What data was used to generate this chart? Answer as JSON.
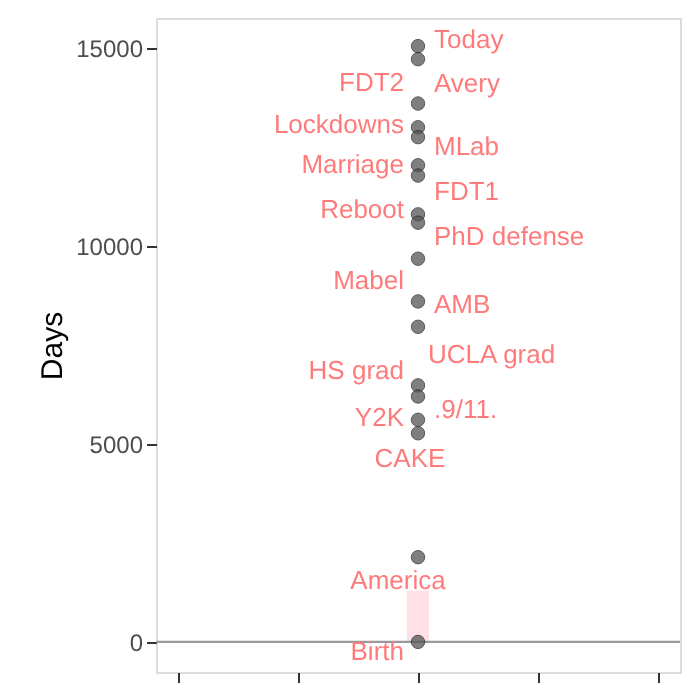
{
  "chart_data": {
    "type": "scatter",
    "ylabel": "Days",
    "categories": [
      null,
      null,
      null,
      null,
      null
    ],
    "series": [
      {
        "color": "#555555",
        "values": [
          null,
          null,
          15050,
          null,
          null
        ]
      },
      {
        "color": "#555555",
        "values": [
          null,
          null,
          14720,
          null,
          null
        ]
      },
      {
        "color": "#555555",
        "values": [
          null,
          null,
          13600,
          null,
          null
        ]
      },
      {
        "color": "#555555",
        "values": [
          null,
          null,
          13000,
          null,
          null
        ]
      },
      {
        "color": "#555555",
        "values": [
          null,
          null,
          12750,
          null,
          null
        ]
      },
      {
        "color": "#555555",
        "values": [
          null,
          null,
          12040,
          null,
          null
        ]
      },
      {
        "color": "#555555",
        "values": [
          null,
          null,
          11780,
          null,
          null
        ]
      },
      {
        "color": "#555555",
        "values": [
          null,
          null,
          10800,
          null,
          null
        ]
      },
      {
        "color": "#555555",
        "values": [
          null,
          null,
          10590,
          null,
          null
        ]
      },
      {
        "color": "#555555",
        "values": [
          null,
          null,
          9680,
          null,
          null
        ]
      },
      {
        "color": "#555555",
        "values": [
          null,
          null,
          8600,
          null,
          null
        ]
      },
      {
        "color": "#555555",
        "values": [
          null,
          null,
          7960,
          null,
          null
        ]
      },
      {
        "color": "#555555",
        "values": [
          null,
          null,
          6480,
          null,
          null
        ]
      },
      {
        "color": "#555555",
        "values": [
          null,
          null,
          6200,
          null,
          null
        ]
      },
      {
        "color": "#555555",
        "values": [
          null,
          null,
          5610,
          null,
          null
        ]
      },
      {
        "color": "#555555",
        "values": [
          null,
          null,
          5270,
          null,
          null
        ]
      },
      {
        "color": "#555555",
        "values": [
          null,
          null,
          2140,
          null,
          null
        ]
      },
      {
        "color": "#555555",
        "values": [
          null,
          null,
          0,
          null,
          null
        ]
      }
    ],
    "marker": "circle",
    "ylim": [
      -760,
      15760
    ],
    "yticks": [
      0,
      5000,
      10000,
      15000
    ],
    "grid": false,
    "ref_lines": [
      {
        "axis": "y",
        "value": 0,
        "color": "#999999"
      }
    ],
    "bands": [
      {
        "axis": "y",
        "from": 0,
        "to": 1300,
        "color": "#ffdde4"
      }
    ],
    "annotations": [
      "Today",
      "FDT2",
      "Avery",
      "Lockdowns",
      "MLab",
      "Marriage",
      "FDT1",
      "Reboot",
      "PhD defense",
      "Mabel",
      "AMB",
      "UCLA grad",
      "HS grad",
      ".9/11.",
      "Y2K",
      "CAKE",
      "America",
      "Birth"
    ]
  }
}
